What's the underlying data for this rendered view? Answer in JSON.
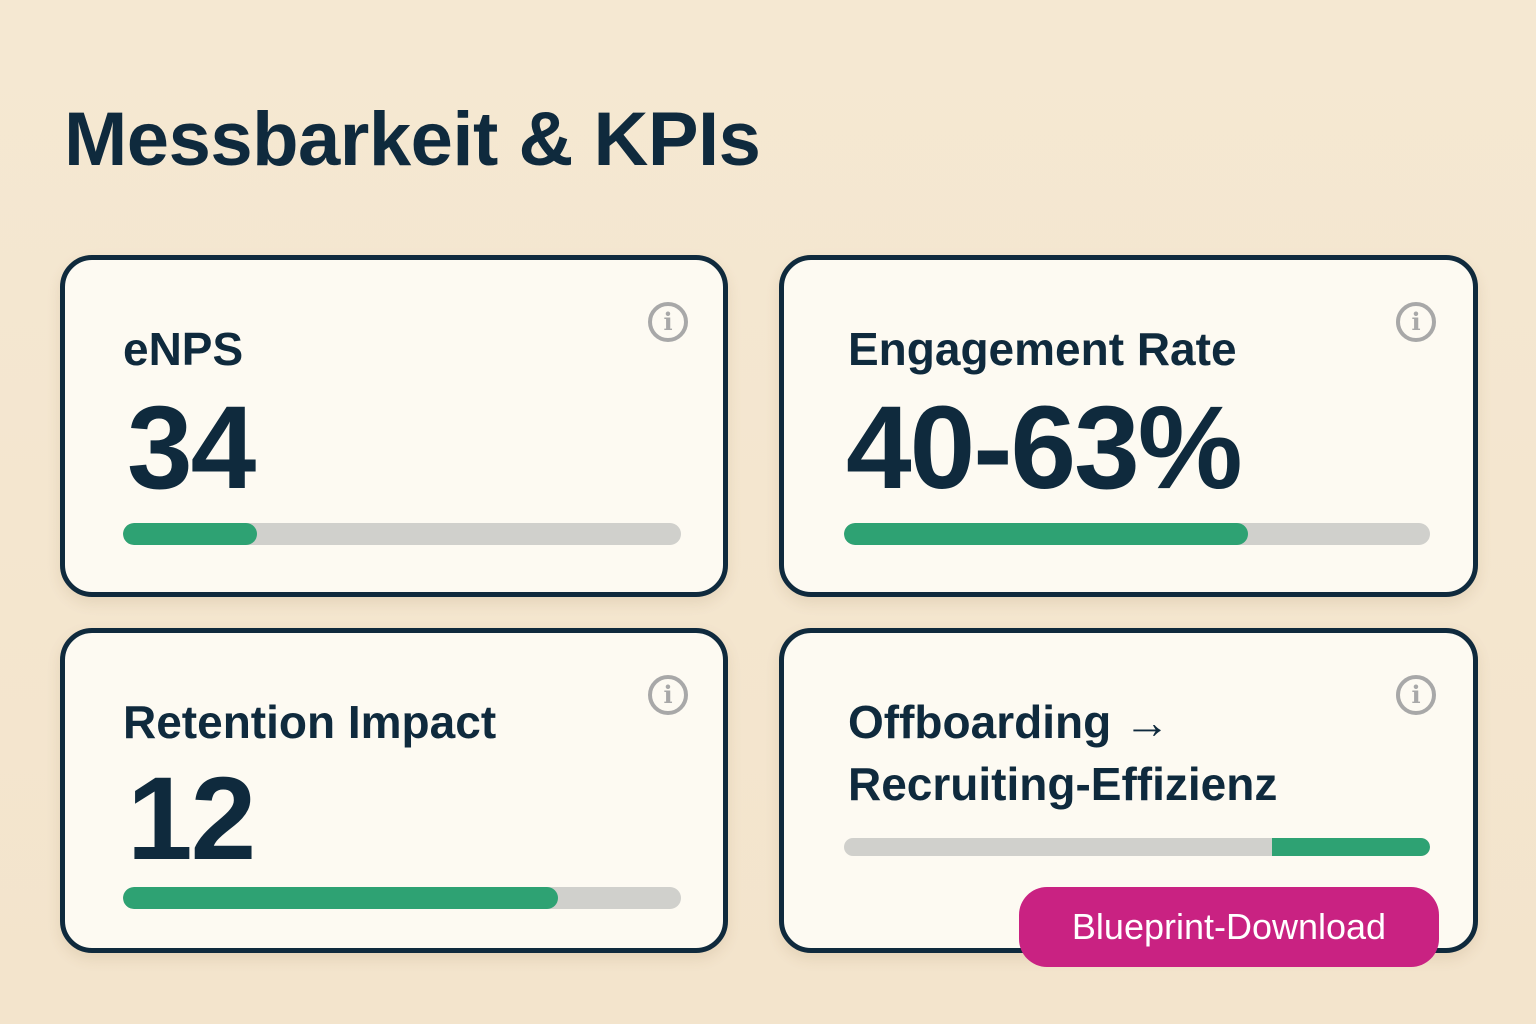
{
  "title": "Messbarkeit & KPIs",
  "cards": [
    {
      "label": "eNPS",
      "value": "34",
      "progress": 0.24,
      "icon": "info-icon"
    },
    {
      "label": "Engagement Rate",
      "value": "40-63%",
      "progress": 0.69,
      "icon": "info-icon"
    },
    {
      "label": "Retention Impact",
      "value": "12",
      "progress": 0.78,
      "icon": "info-icon"
    },
    {
      "label": "Offboarding → Recruiting-Effizienz",
      "value": "",
      "progress": 0.27,
      "progress_align": "right",
      "icon": "info-icon"
    }
  ],
  "button": {
    "label": "Blueprint-Download"
  },
  "colors": {
    "accent": "#2ea273",
    "button": "#c92282",
    "text": "#0f2a3d",
    "background": "#f5e8d2"
  }
}
